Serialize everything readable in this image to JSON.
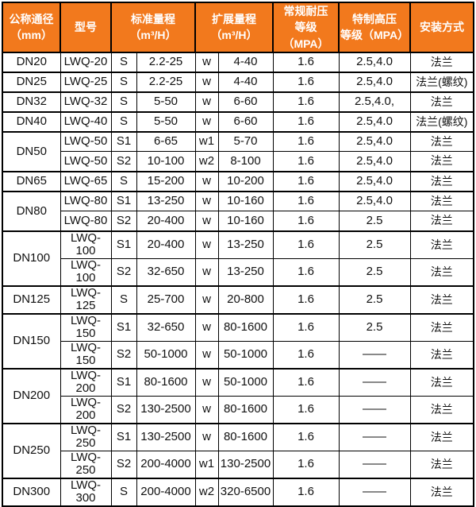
{
  "theme": {
    "header_bg": "#F2791D",
    "header_text": "#FFFFFF",
    "border_color": "#000000",
    "body_bg": "#FFFFFF",
    "body_text": "#111111"
  },
  "table": {
    "columns": [
      {
        "id": "dn",
        "label": "公称通径\n（mm）"
      },
      {
        "id": "model",
        "label": "型号"
      },
      {
        "id": "std_range",
        "label": "标准量程\n（m³/H）"
      },
      {
        "id": "ext_range",
        "label": "扩展量程\n（m³/H）"
      },
      {
        "id": "pressure",
        "label": "常规耐压\n等级（MPA）"
      },
      {
        "id": "high_pressure",
        "label": "特制高压\n等级（MPA）"
      },
      {
        "id": "install",
        "label": "安装方式"
      }
    ],
    "rows": [
      {
        "dn": "DN20",
        "span": 1,
        "group": true,
        "model": "LWQ-20",
        "s": "S",
        "std": "2.2-25",
        "w": "w",
        "ext": "4-40",
        "p": "1.6",
        "hp": "2.5,4.0",
        "inst": "法兰"
      },
      {
        "dn": "DN25",
        "span": 1,
        "group": true,
        "model": "LWQ-25",
        "s": "S",
        "std": "2.2-25",
        "w": "w",
        "ext": "4-40",
        "p": "1.6",
        "hp": "2.5,4.0",
        "inst": "法兰(螺纹)"
      },
      {
        "dn": "DN32",
        "span": 1,
        "group": true,
        "model": "LWQ-32",
        "s": "S",
        "std": "5-50",
        "w": "w",
        "ext": "6-60",
        "p": "1.6",
        "hp": "2.5,4.0,",
        "inst": "法兰"
      },
      {
        "dn": "DN40",
        "span": 1,
        "group": true,
        "model": "LWQ-40",
        "s": "S",
        "std": "5-50",
        "w": "w",
        "ext": "6-60",
        "p": "1.6",
        "hp": "2.5,4.0",
        "inst": "法兰(螺纹)"
      },
      {
        "dn": "DN50",
        "span": 2,
        "group": true,
        "model": "LWQ-50",
        "s": "S1",
        "std": "6-65",
        "w": "w1",
        "ext": "5-70",
        "p": "1.6",
        "hp": "2.5,4.0",
        "inst": "法兰"
      },
      {
        "dn": null,
        "group": false,
        "model": "LWQ-50",
        "s": "S2",
        "std": "10-100",
        "w": "w2",
        "ext": "8-100",
        "p": "1.6",
        "hp": "2.5,4.0",
        "inst": "法兰"
      },
      {
        "dn": "DN65",
        "span": 1,
        "group": true,
        "model": "LWQ-65",
        "s": "S",
        "std": "15-200",
        "w": "w",
        "ext": "10-200",
        "p": "1.6",
        "hp": "2.5,4.0",
        "inst": "法兰"
      },
      {
        "dn": "DN80",
        "span": 2,
        "group": true,
        "model": "LWQ-80",
        "s": "S1",
        "std": "13-250",
        "w": "w",
        "ext": "10-160",
        "p": "1.6",
        "hp": "2.5,4.0",
        "inst": "法兰"
      },
      {
        "dn": null,
        "group": false,
        "model": "LWQ-80",
        "s": "S2",
        "std": "20-400",
        "w": "w",
        "ext": "10-160",
        "p": "1.6",
        "hp": "2.5",
        "inst": "法兰"
      },
      {
        "dn": "DN100",
        "span": 2,
        "group": true,
        "model": "LWQ-100",
        "s": "S1",
        "std": "20-400",
        "w": "w",
        "ext": "13-250",
        "p": "1.6",
        "hp": "2.5",
        "inst": "法兰"
      },
      {
        "dn": null,
        "group": false,
        "model": "LWQ-100",
        "s": "S2",
        "std": "32-650",
        "w": "w",
        "ext": "13-250",
        "p": "1.6",
        "hp": "2.5",
        "inst": "法兰"
      },
      {
        "dn": "DN125",
        "span": 1,
        "group": true,
        "model": "LWQ-125",
        "s": "S",
        "std": "25-700",
        "w": "w",
        "ext": "20-800",
        "p": "1.6",
        "hp": "2.5",
        "inst": "法兰"
      },
      {
        "dn": "DN150",
        "span": 2,
        "group": true,
        "model": "LWQ-150",
        "s": "S1",
        "std": "32-650",
        "w": "w",
        "ext": "80-1600",
        "p": "1.6",
        "hp": "2.5",
        "inst": "法兰"
      },
      {
        "dn": null,
        "group": false,
        "model": "LWQ-150",
        "s": "S2",
        "std": "50-1000",
        "w": "w",
        "ext": "50-1000",
        "p": "1.6",
        "hp": "——",
        "inst": "法兰"
      },
      {
        "dn": "DN200",
        "span": 2,
        "group": true,
        "model": "LWQ-200",
        "s": "S1",
        "std": "80-1600",
        "w": "w",
        "ext": "50-1000",
        "p": "1.6",
        "hp": "——",
        "inst": "法兰"
      },
      {
        "dn": null,
        "group": false,
        "model": "LWQ-200",
        "s": "S2",
        "std": "130-2500",
        "w": "w",
        "ext": "80-1600",
        "p": "1.6",
        "hp": "——",
        "inst": "法兰"
      },
      {
        "dn": "DN250",
        "span": 2,
        "group": true,
        "model": "LWQ-250",
        "s": "S1",
        "std": "130-2500",
        "w": "w",
        "ext": "80-1600",
        "p": "1.6",
        "hp": "——",
        "inst": "法兰"
      },
      {
        "dn": null,
        "group": false,
        "model": "LWQ-250",
        "s": "S2",
        "std": "200-4000",
        "w": "w1",
        "ext": "130-2500",
        "p": "1.6",
        "hp": "——",
        "inst": "法兰"
      },
      {
        "dn": "DN300",
        "span": 1,
        "group": true,
        "model": "LWQ-300",
        "s": "S",
        "std": "200-4000",
        "w": "w2",
        "ext": "320-6500",
        "p": "1.6",
        "hp": "——",
        "inst": "法兰"
      }
    ]
  }
}
